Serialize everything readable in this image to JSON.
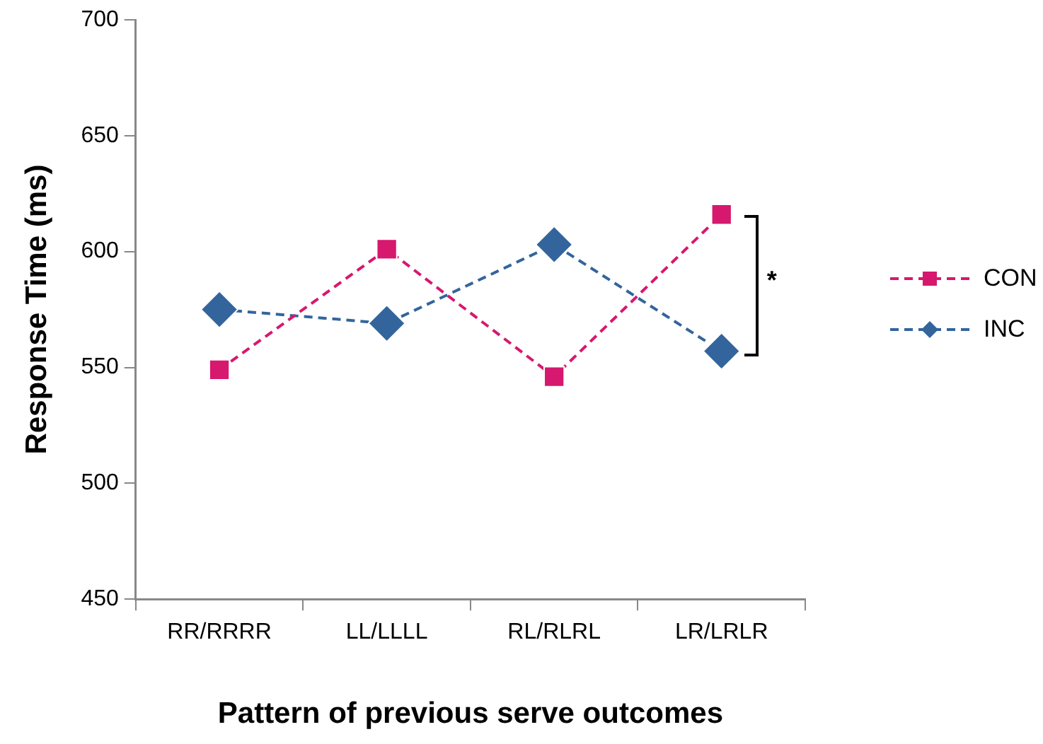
{
  "chart_data": {
    "type": "line",
    "xlabel": "Pattern of previous serve outcomes",
    "ylabel": "Response Time (ms)",
    "categories": [
      "RR/RRRR",
      "LL/LLLL",
      "RL/RLRL",
      "LR/LRLR"
    ],
    "series": [
      {
        "name": "CON",
        "color": "#d6186e",
        "values": [
          549,
          601,
          546,
          616
        ],
        "marker": "square"
      },
      {
        "name": "INC",
        "color": "#33659c",
        "values": [
          575,
          569,
          603,
          557
        ],
        "marker": "diamond"
      }
    ],
    "ylim": [
      450,
      700
    ],
    "yticks": [
      450,
      500,
      550,
      600,
      650,
      700
    ],
    "grid": false,
    "legend": "right",
    "line_style": "dashed",
    "annotations": [
      "*"
    ]
  }
}
